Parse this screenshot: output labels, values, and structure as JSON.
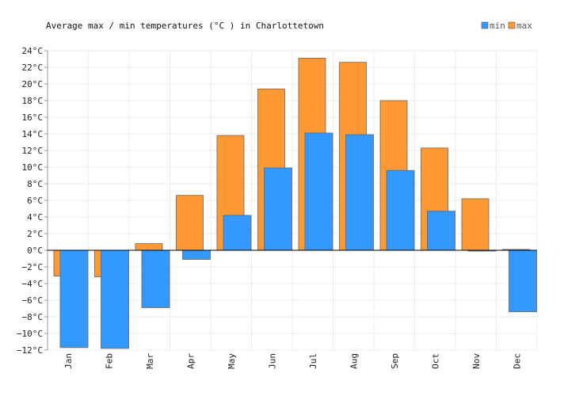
{
  "chart_data": {
    "type": "bar",
    "title": "Average max / min temperatures (°C ) in Charlottetown",
    "categories": [
      "Jan",
      "Feb",
      "Mar",
      "Apr",
      "May",
      "Jun",
      "Jul",
      "Aug",
      "Sep",
      "Oct",
      "Nov",
      "Dec"
    ],
    "series": [
      {
        "name": "max",
        "color": "#ff9933",
        "values": [
          -3.1,
          -3.2,
          0.8,
          6.6,
          13.8,
          19.4,
          23.1,
          22.6,
          18.0,
          12.3,
          6.2,
          0.1
        ]
      },
      {
        "name": "min",
        "color": "#3399ff",
        "values": [
          -11.7,
          -11.8,
          -6.9,
          -1.1,
          4.2,
          9.9,
          14.1,
          13.9,
          9.6,
          4.7,
          -0.1,
          -7.4
        ]
      }
    ],
    "ylim": [
      -12,
      24
    ],
    "ytick_step": 2,
    "ytick_labels": [
      "24°C",
      "22°C",
      "20°C",
      "18°C",
      "16°C",
      "14°C",
      "12°C",
      "10°C",
      "8°C",
      "6°C",
      "4°C",
      "2°C",
      "0°C",
      "−2°C",
      "−4°C",
      "−6°C",
      "−8°C",
      "−10°C",
      "−12°C"
    ],
    "grid": true,
    "legend": {
      "position": "top-right",
      "entries": [
        "min",
        "max"
      ]
    }
  }
}
